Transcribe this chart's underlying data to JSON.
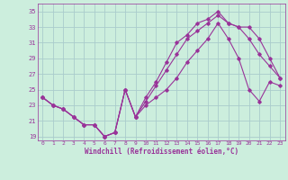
{
  "xlabel": "Windchill (Refroidissement éolien,°C)",
  "bg_color": "#cceedd",
  "grid_color": "#aacccc",
  "line_color": "#993399",
  "xlim": [
    -0.5,
    23.5
  ],
  "ylim": [
    18.5,
    36.0
  ],
  "yticks": [
    19,
    21,
    23,
    25,
    27,
    29,
    31,
    33,
    35
  ],
  "xticks": [
    0,
    1,
    2,
    3,
    4,
    5,
    6,
    7,
    8,
    9,
    10,
    11,
    12,
    13,
    14,
    15,
    16,
    17,
    18,
    19,
    20,
    21,
    22,
    23
  ],
  "line1_x": [
    0,
    1,
    2,
    3,
    4,
    5,
    6,
    7,
    8,
    9,
    10,
    11,
    12,
    13,
    14,
    15,
    16,
    17,
    18,
    19,
    20,
    21,
    22,
    23
  ],
  "line1_y": [
    24.0,
    23.0,
    22.5,
    21.5,
    20.5,
    20.5,
    19.0,
    19.5,
    25.0,
    21.5,
    24.0,
    26.0,
    28.5,
    31.0,
    32.0,
    33.5,
    34.0,
    35.0,
    33.5,
    33.0,
    33.0,
    31.5,
    29.0,
    26.5
  ],
  "line2_x": [
    0,
    1,
    2,
    3,
    4,
    5,
    6,
    7,
    8,
    9,
    10,
    11,
    12,
    13,
    14,
    15,
    16,
    17,
    18,
    19,
    20,
    21,
    22,
    23
  ],
  "line2_y": [
    24.0,
    23.0,
    22.5,
    21.5,
    20.5,
    20.5,
    19.0,
    19.5,
    25.0,
    21.5,
    23.5,
    25.5,
    27.5,
    29.5,
    31.5,
    32.5,
    33.5,
    34.5,
    33.5,
    33.0,
    31.5,
    29.5,
    28.0,
    26.5
  ],
  "line3_x": [
    0,
    1,
    2,
    3,
    4,
    5,
    6,
    7,
    8,
    9,
    10,
    11,
    12,
    13,
    14,
    15,
    16,
    17,
    18,
    19,
    20,
    21,
    22,
    23
  ],
  "line3_y": [
    24.0,
    23.0,
    22.5,
    21.5,
    20.5,
    20.5,
    19.0,
    19.5,
    25.0,
    21.5,
    23.0,
    24.0,
    25.0,
    26.5,
    28.5,
    30.0,
    31.5,
    33.5,
    31.5,
    29.0,
    25.0,
    23.5,
    26.0,
    25.5
  ]
}
